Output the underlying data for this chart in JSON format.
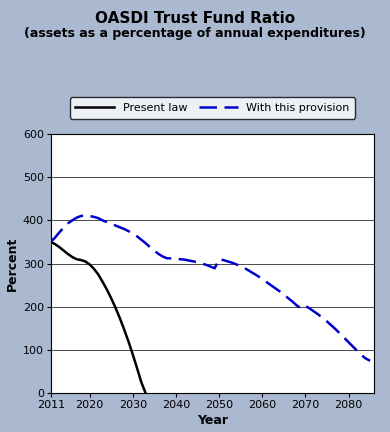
{
  "title": "OASDI Trust Fund Ratio",
  "subtitle": "(assets as a percentage of annual expenditures)",
  "xlabel": "Year",
  "ylabel": "Percent",
  "xlim": [
    2011,
    2086
  ],
  "ylim": [
    0,
    600
  ],
  "yticks": [
    0,
    100,
    200,
    300,
    400,
    500,
    600
  ],
  "xticks": [
    2011,
    2020,
    2030,
    2040,
    2050,
    2060,
    2070,
    2080
  ],
  "background_color": "#aab8d0",
  "plot_bg_color": "#ffffff",
  "present_law": {
    "x": [
      2011,
      2012,
      2013,
      2014,
      2015,
      2016,
      2017,
      2018,
      2019,
      2020,
      2021,
      2022,
      2023,
      2024,
      2025,
      2026,
      2027,
      2028,
      2029,
      2030,
      2031,
      2032,
      2033
    ],
    "y": [
      350,
      345,
      338,
      330,
      322,
      315,
      310,
      308,
      305,
      298,
      288,
      275,
      258,
      240,
      220,
      198,
      174,
      148,
      120,
      90,
      58,
      25,
      0
    ],
    "color": "#000000",
    "linestyle": "solid",
    "linewidth": 1.8,
    "label": "Present law"
  },
  "provision": {
    "x": [
      2011,
      2012,
      2013,
      2014,
      2015,
      2016,
      2017,
      2018,
      2019,
      2020,
      2021,
      2022,
      2023,
      2024,
      2025,
      2026,
      2027,
      2028,
      2029,
      2030,
      2031,
      2032,
      2033,
      2034,
      2035,
      2036,
      2037,
      2038,
      2039,
      2040,
      2041,
      2042,
      2043,
      2044,
      2045,
      2046,
      2047,
      2048,
      2049,
      2050,
      2051,
      2052,
      2053,
      2054,
      2055,
      2056,
      2057,
      2058,
      2059,
      2060,
      2061,
      2062,
      2063,
      2064,
      2065,
      2066,
      2067,
      2068,
      2069,
      2070,
      2071,
      2072,
      2073,
      2074,
      2075,
      2076,
      2077,
      2078,
      2079,
      2080,
      2081,
      2082,
      2083,
      2084,
      2085
    ],
    "y": [
      350,
      360,
      372,
      383,
      393,
      400,
      406,
      410,
      411,
      410,
      408,
      405,
      400,
      396,
      392,
      388,
      384,
      380,
      375,
      370,
      363,
      355,
      347,
      338,
      330,
      322,
      316,
      312,
      312,
      311,
      310,
      309,
      307,
      305,
      303,
      300,
      297,
      293,
      289,
      310,
      308,
      305,
      302,
      298,
      294,
      289,
      283,
      277,
      271,
      264,
      257,
      250,
      243,
      236,
      228,
      220,
      212,
      203,
      196,
      202,
      196,
      189,
      182,
      174,
      166,
      157,
      148,
      138,
      128,
      118,
      108,
      98,
      88,
      80,
      75
    ],
    "color": "#0000cc",
    "linestyle": "dashed",
    "linewidth": 1.8,
    "label": "With this provision"
  },
  "legend_box_color": "#ffffff",
  "title_fontsize": 11,
  "subtitle_fontsize": 9,
  "axis_label_fontsize": 9,
  "tick_fontsize": 8,
  "legend_fontsize": 8
}
